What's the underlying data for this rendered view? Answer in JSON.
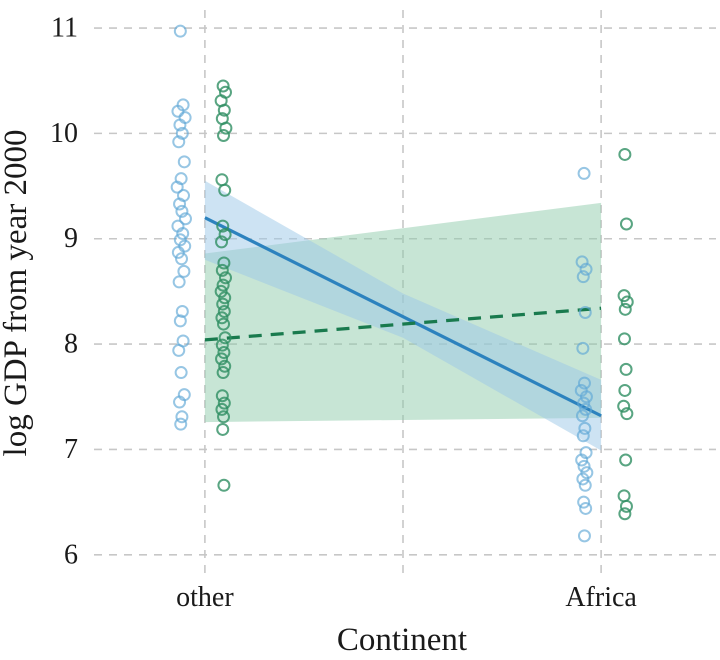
{
  "chart_data": {
    "type": "scatter",
    "title": "",
    "xlabel": "Continent",
    "ylabel": "log GDP from year 2000",
    "background": "#ffffff",
    "x_categories": [
      {
        "label": "other",
        "x": 0
      },
      {
        "label": "Africa",
        "x": 1
      }
    ],
    "xlim": [
      -0.29,
      1.29
    ],
    "ylim": [
      5.78,
      11.19
    ],
    "yticks": [
      6,
      7,
      8,
      9,
      10,
      11
    ],
    "grid": {
      "show": true,
      "style": "dashed",
      "color": "#c7c7c7",
      "x_lines": [
        0,
        0.5,
        1
      ]
    },
    "bands": [
      {
        "name": "green-model-ci-band",
        "color": "#8fcbab",
        "opacity": 0.5,
        "x": [
          0,
          0.5,
          1
        ],
        "upper": [
          8.86,
          9.1,
          9.34
        ],
        "lower": [
          7.26,
          7.28,
          7.3
        ]
      },
      {
        "name": "blue-model-ci-band",
        "color": "#9cc8e8",
        "opacity": 0.5,
        "x": [
          0,
          0.5,
          1
        ],
        "upper": [
          9.55,
          8.48,
          7.66
        ],
        "lower": [
          8.8,
          8.06,
          6.99
        ]
      }
    ],
    "lines": [
      {
        "name": "blue-regression-line",
        "color": "#2c82be",
        "dash": "solid",
        "width": 3.2,
        "x": [
          0,
          1
        ],
        "y": [
          9.2,
          7.32
        ]
      },
      {
        "name": "green-regression-line",
        "color": "#197a4e",
        "dash": "dashed",
        "width": 3.2,
        "x": [
          0,
          1
        ],
        "y": [
          8.04,
          8.34
        ]
      }
    ],
    "point_style": {
      "radius": 5.5,
      "stroke_width": 2
    },
    "point_series": [
      {
        "name": "blue-points-other",
        "color": "#5fa8d6",
        "opacity": 0.65,
        "points": [
          [
            -0.062,
            10.97
          ],
          [
            -0.055,
            10.27
          ],
          [
            -0.068,
            10.21
          ],
          [
            -0.05,
            10.15
          ],
          [
            -0.063,
            10.08
          ],
          [
            -0.057,
            10.0
          ],
          [
            -0.066,
            9.92
          ],
          [
            -0.052,
            9.73
          ],
          [
            -0.06,
            9.57
          ],
          [
            -0.07,
            9.49
          ],
          [
            -0.054,
            9.41
          ],
          [
            -0.064,
            9.33
          ],
          [
            -0.058,
            9.26
          ],
          [
            -0.049,
            9.19
          ],
          [
            -0.068,
            9.12
          ],
          [
            -0.056,
            9.05
          ],
          [
            -0.062,
            8.99
          ],
          [
            -0.051,
            8.93
          ],
          [
            -0.067,
            8.87
          ],
          [
            -0.059,
            8.81
          ],
          [
            -0.053,
            8.69
          ],
          [
            -0.065,
            8.59
          ],
          [
            -0.057,
            8.31
          ],
          [
            -0.062,
            8.22
          ],
          [
            -0.055,
            8.03
          ],
          [
            -0.066,
            7.94
          ],
          [
            -0.06,
            7.73
          ],
          [
            -0.052,
            7.52
          ],
          [
            -0.064,
            7.45
          ],
          [
            -0.058,
            7.31
          ],
          [
            -0.061,
            7.24
          ]
        ]
      },
      {
        "name": "green-points-other",
        "color": "#2f8f63",
        "opacity": 0.8,
        "points": [
          [
            0.046,
            10.45
          ],
          [
            0.052,
            10.39
          ],
          [
            0.041,
            10.31
          ],
          [
            0.049,
            10.22
          ],
          [
            0.044,
            10.14
          ],
          [
            0.053,
            10.05
          ],
          [
            0.047,
            9.98
          ],
          [
            0.043,
            9.56
          ],
          [
            0.05,
            9.46
          ],
          [
            0.045,
            9.12
          ],
          [
            0.051,
            9.04
          ],
          [
            0.042,
            8.97
          ],
          [
            0.048,
            8.77
          ],
          [
            0.044,
            8.7
          ],
          [
            0.052,
            8.63
          ],
          [
            0.046,
            8.56
          ],
          [
            0.041,
            8.5
          ],
          [
            0.05,
            8.44
          ],
          [
            0.045,
            8.38
          ],
          [
            0.049,
            8.31
          ],
          [
            0.043,
            8.25
          ],
          [
            0.047,
            8.19
          ],
          [
            0.051,
            8.06
          ],
          [
            0.044,
            7.99
          ],
          [
            0.048,
            7.92
          ],
          [
            0.042,
            7.86
          ],
          [
            0.05,
            7.79
          ],
          [
            0.046,
            7.73
          ],
          [
            0.044,
            7.51
          ],
          [
            0.049,
            7.44
          ],
          [
            0.043,
            7.38
          ],
          [
            0.047,
            7.31
          ],
          [
            0.045,
            7.19
          ],
          [
            0.048,
            6.66
          ]
        ]
      },
      {
        "name": "blue-points-africa",
        "color": "#5fa8d6",
        "opacity": 0.65,
        "points": [
          [
            0.957,
            9.62
          ],
          [
            0.952,
            8.78
          ],
          [
            0.962,
            8.71
          ],
          [
            0.955,
            8.64
          ],
          [
            0.96,
            8.3
          ],
          [
            0.954,
            7.96
          ],
          [
            0.958,
            7.63
          ],
          [
            0.95,
            7.56
          ],
          [
            0.963,
            7.5
          ],
          [
            0.956,
            7.44
          ],
          [
            0.961,
            7.38
          ],
          [
            0.953,
            7.32
          ],
          [
            0.959,
            7.2
          ],
          [
            0.955,
            7.13
          ],
          [
            0.962,
            6.97
          ],
          [
            0.951,
            6.9
          ],
          [
            0.957,
            6.84
          ],
          [
            0.964,
            6.78
          ],
          [
            0.954,
            6.72
          ],
          [
            0.96,
            6.66
          ],
          [
            0.956,
            6.5
          ],
          [
            0.961,
            6.44
          ],
          [
            0.958,
            6.18
          ]
        ]
      },
      {
        "name": "green-points-africa",
        "color": "#2f8f63",
        "opacity": 0.8,
        "points": [
          [
            1.06,
            9.8
          ],
          [
            1.064,
            9.14
          ],
          [
            1.058,
            8.46
          ],
          [
            1.066,
            8.4
          ],
          [
            1.061,
            8.33
          ],
          [
            1.059,
            8.05
          ],
          [
            1.063,
            7.76
          ],
          [
            1.06,
            7.56
          ],
          [
            1.057,
            7.41
          ],
          [
            1.065,
            7.34
          ],
          [
            1.062,
            6.9
          ],
          [
            1.058,
            6.56
          ],
          [
            1.064,
            6.46
          ],
          [
            1.06,
            6.39
          ]
        ]
      }
    ]
  }
}
